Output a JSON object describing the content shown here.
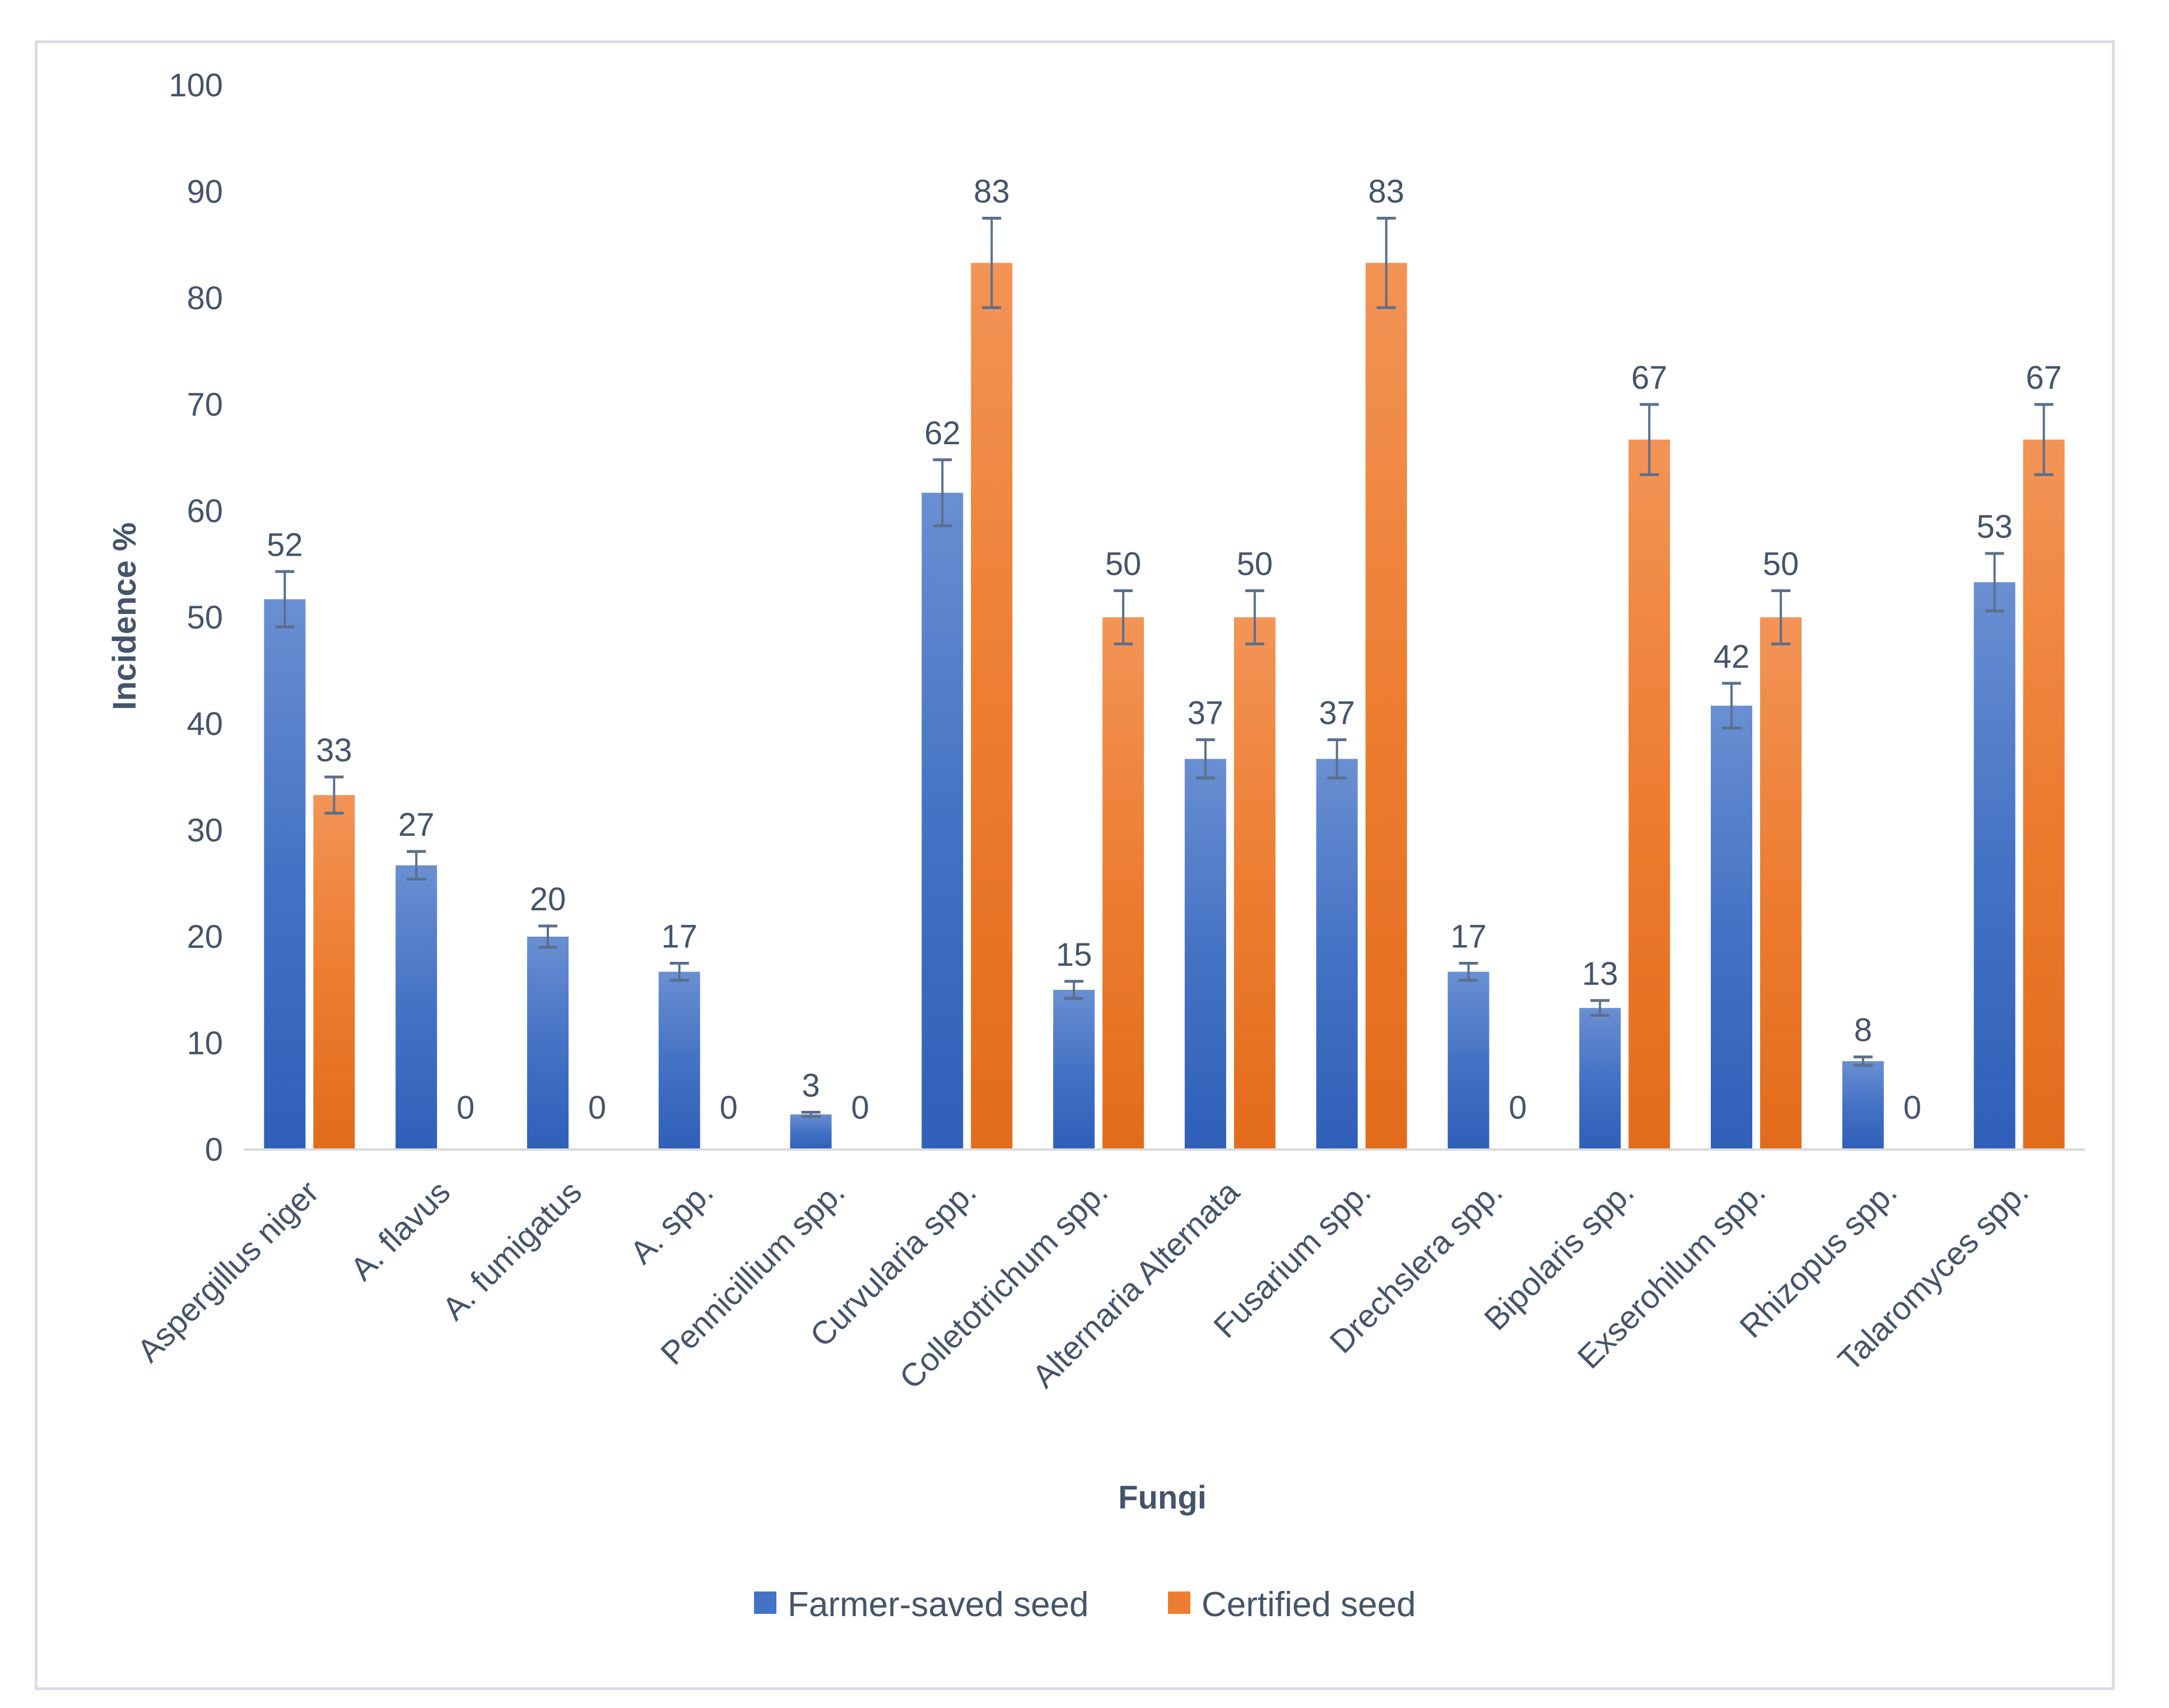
{
  "chart_data": {
    "type": "bar",
    "title": "",
    "xlabel": "Fungi",
    "ylabel": "Incidence %",
    "ylim": [
      0,
      100
    ],
    "yticks": [
      0,
      10,
      20,
      30,
      40,
      50,
      60,
      70,
      80,
      90,
      100
    ],
    "grid": false,
    "legend_position": "bottom",
    "categories": [
      "Aspergillus niger",
      "A. flavus",
      "A. fumigatus",
      "A. spp.",
      "Pennicillium spp.",
      "Curvularia spp.",
      "Colletotrichum spp.",
      "Alternaria Alternata",
      "Fusarium spp.",
      "Drechslera spp.",
      "Bipolaris spp.",
      "Exserohilum spp.",
      "Rhizopus spp.",
      "Talaromyces spp."
    ],
    "series": [
      {
        "name": "Farmer-saved seed",
        "color": "#4472c4",
        "values": [
          51.7,
          26.7,
          20,
          16.7,
          3.3,
          61.7,
          15,
          36.7,
          36.7,
          16.7,
          13.3,
          41.7,
          8.3,
          53.3
        ],
        "labels": [
          "52",
          "27",
          "20",
          "17",
          "3",
          "62",
          "15",
          "37",
          "37",
          "17",
          "13",
          "42",
          "8",
          "53"
        ],
        "errors": [
          2.6,
          1.3,
          1.0,
          0.8,
          0.2,
          3.1,
          0.8,
          1.8,
          1.8,
          0.8,
          0.7,
          2.1,
          0.4,
          2.7
        ]
      },
      {
        "name": "Certified seed",
        "color": "#ed7d31",
        "values": [
          33.3,
          0,
          0,
          0,
          0,
          83.3,
          50,
          50,
          83.3,
          0,
          66.7,
          50,
          0,
          66.7
        ],
        "labels": [
          "33",
          "0",
          "0",
          "0",
          "0",
          "83",
          "50",
          "50",
          "83",
          "0",
          "67",
          "50",
          "0",
          "67"
        ],
        "errors": [
          1.7,
          0,
          0,
          0,
          0,
          4.2,
          2.5,
          2.5,
          4.2,
          0,
          3.3,
          2.5,
          0,
          3.3
        ]
      }
    ]
  }
}
